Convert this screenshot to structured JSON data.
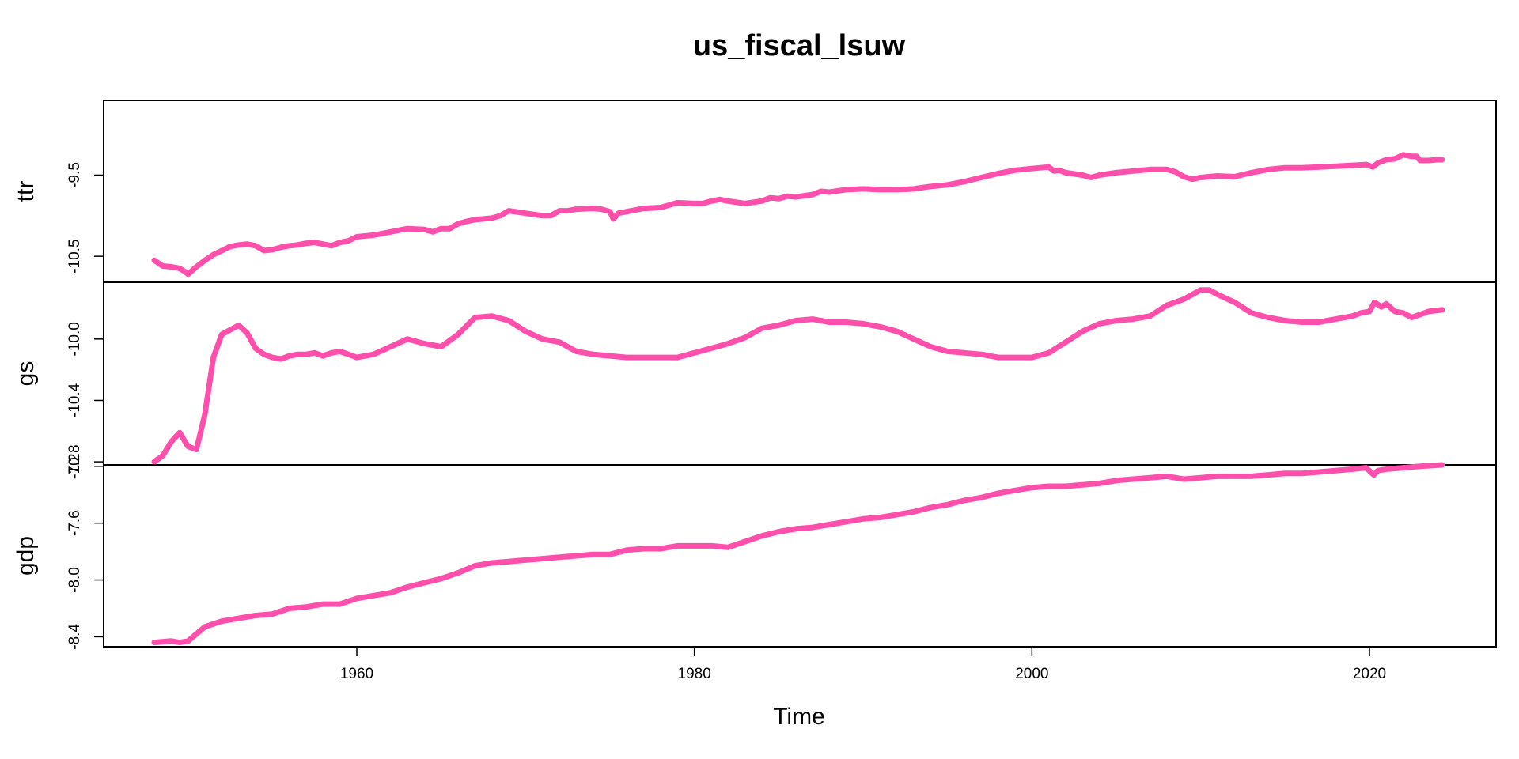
{
  "chart_data": {
    "type": "line",
    "title": "us_fiscal_lsuw",
    "xlabel": "Time",
    "xlim": [
      1945.0,
      2027.5
    ],
    "xticks": [
      1960,
      1980,
      2000,
      2020
    ],
    "color": "#ff4fac",
    "grid": false,
    "legend": "none",
    "panels": [
      {
        "name": "ttr",
        "ylim": [
          -10.82,
          -8.58
        ],
        "yticks": [
          -10.5,
          -9.5
        ],
        "x": [
          1948.0,
          1948.5,
          1949.0,
          1949.5,
          1949.75,
          1950.0,
          1950.5,
          1951.0,
          1951.5,
          1952.0,
          1952.5,
          1953.0,
          1953.5,
          1954.0,
          1954.5,
          1955.0,
          1955.5,
          1956.0,
          1956.5,
          1957.0,
          1957.5,
          1958.0,
          1958.5,
          1959.0,
          1959.5,
          1960.0,
          1961.0,
          1962.0,
          1963.0,
          1964.0,
          1964.5,
          1965.0,
          1965.5,
          1966.0,
          1966.5,
          1967.0,
          1968.0,
          1968.5,
          1969.0,
          1970.0,
          1971.0,
          1971.5,
          1972.0,
          1972.5,
          1973.0,
          1974.0,
          1974.5,
          1975.0,
          1975.2,
          1975.5,
          1976.0,
          1977.0,
          1978.0,
          1979.0,
          1980.0,
          1980.5,
          1981.0,
          1981.5,
          1982.0,
          1983.0,
          1984.0,
          1984.5,
          1985.0,
          1985.5,
          1986.0,
          1987.0,
          1987.5,
          1988.0,
          1989.0,
          1990.0,
          1991.0,
          1992.0,
          1993.0,
          1994.0,
          1995.0,
          1996.0,
          1997.0,
          1998.0,
          1999.0,
          2000.0,
          2000.5,
          2001.0,
          2001.3,
          2001.6,
          2002.0,
          2003.0,
          2003.5,
          2004.0,
          2005.0,
          2006.0,
          2007.0,
          2008.0,
          2008.5,
          2009.0,
          2009.5,
          2010.0,
          2011.0,
          2012.0,
          2013.0,
          2014.0,
          2015.0,
          2016.0,
          2017.0,
          2018.0,
          2019.0,
          2019.8,
          2020.2,
          2020.5,
          2021.0,
          2021.5,
          2022.0,
          2022.5,
          2022.8,
          2023.0,
          2023.5,
          2024.0,
          2024.3
        ],
        "y": [
          -10.55,
          -10.62,
          -10.63,
          -10.65,
          -10.68,
          -10.72,
          -10.63,
          -10.55,
          -10.48,
          -10.43,
          -10.38,
          -10.36,
          -10.35,
          -10.37,
          -10.43,
          -10.42,
          -10.39,
          -10.37,
          -10.36,
          -10.34,
          -10.33,
          -10.35,
          -10.37,
          -10.33,
          -10.31,
          -10.26,
          -10.24,
          -10.2,
          -10.16,
          -10.17,
          -10.2,
          -10.16,
          -10.16,
          -10.1,
          -10.07,
          -10.05,
          -10.03,
          -10.0,
          -9.94,
          -9.97,
          -10.0,
          -10.0,
          -9.94,
          -9.94,
          -9.92,
          -9.91,
          -9.92,
          -9.95,
          -10.04,
          -9.97,
          -9.95,
          -9.91,
          -9.9,
          -9.84,
          -9.85,
          -9.85,
          -9.82,
          -9.8,
          -9.82,
          -9.85,
          -9.82,
          -9.78,
          -9.79,
          -9.76,
          -9.77,
          -9.74,
          -9.7,
          -9.71,
          -9.68,
          -9.67,
          -9.68,
          -9.68,
          -9.67,
          -9.64,
          -9.62,
          -9.58,
          -9.53,
          -9.48,
          -9.44,
          -9.42,
          -9.41,
          -9.4,
          -9.45,
          -9.44,
          -9.47,
          -9.5,
          -9.53,
          -9.5,
          -9.47,
          -9.45,
          -9.43,
          -9.43,
          -9.46,
          -9.52,
          -9.55,
          -9.53,
          -9.51,
          -9.52,
          -9.47,
          -9.43,
          -9.41,
          -9.41,
          -9.4,
          -9.39,
          -9.38,
          -9.37,
          -9.4,
          -9.35,
          -9.31,
          -9.3,
          -9.25,
          -9.27,
          -9.27,
          -9.32,
          -9.32,
          -9.31,
          -9.31
        ]
      },
      {
        "name": "gs",
        "ylim": [
          -10.82,
          -9.63
        ],
        "yticks": [
          -10.8,
          -10.4,
          -10.0
        ],
        "x": [
          1948.0,
          1948.5,
          1949.0,
          1949.5,
          1950.0,
          1950.5,
          1951.0,
          1951.5,
          1952.0,
          1952.5,
          1953.0,
          1953.5,
          1954.0,
          1954.5,
          1955.0,
          1955.5,
          1956.0,
          1956.5,
          1957.0,
          1957.5,
          1958.0,
          1958.5,
          1959.0,
          1959.5,
          1960.0,
          1961.0,
          1962.0,
          1963.0,
          1964.0,
          1965.0,
          1966.0,
          1967.0,
          1968.0,
          1969.0,
          1970.0,
          1971.0,
          1972.0,
          1973.0,
          1974.0,
          1975.0,
          1976.0,
          1977.0,
          1978.0,
          1979.0,
          1980.0,
          1981.0,
          1982.0,
          1983.0,
          1984.0,
          1985.0,
          1986.0,
          1987.0,
          1988.0,
          1989.0,
          1990.0,
          1991.0,
          1992.0,
          1993.0,
          1994.0,
          1995.0,
          1996.0,
          1997.0,
          1998.0,
          1999.0,
          2000.0,
          2001.0,
          2002.0,
          2003.0,
          2004.0,
          2005.0,
          2006.0,
          2007.0,
          2008.0,
          2009.0,
          2010.0,
          2010.5,
          2011.0,
          2012.0,
          2013.0,
          2014.0,
          2015.0,
          2016.0,
          2017.0,
          2018.0,
          2019.0,
          2019.5,
          2020.0,
          2020.3,
          2020.7,
          2021.0,
          2021.5,
          2022.0,
          2022.5,
          2023.0,
          2023.5,
          2024.3
        ],
        "y": [
          -10.8,
          -10.76,
          -10.67,
          -10.61,
          -10.7,
          -10.72,
          -10.49,
          -10.12,
          -9.97,
          -9.94,
          -9.91,
          -9.96,
          -10.06,
          -10.1,
          -10.12,
          -10.13,
          -10.11,
          -10.1,
          -10.1,
          -10.09,
          -10.11,
          -10.09,
          -10.08,
          -10.1,
          -10.12,
          -10.1,
          -10.05,
          -10.0,
          -10.03,
          -10.05,
          -9.97,
          -9.86,
          -9.85,
          -9.88,
          -9.95,
          -10.0,
          -10.02,
          -10.08,
          -10.1,
          -10.11,
          -10.12,
          -10.12,
          -10.12,
          -10.12,
          -10.09,
          -10.06,
          -10.03,
          -9.99,
          -9.93,
          -9.91,
          -9.88,
          -9.87,
          -9.89,
          -9.89,
          -9.9,
          -9.92,
          -9.95,
          -10.0,
          -10.05,
          -10.08,
          -10.09,
          -10.1,
          -10.12,
          -10.12,
          -10.12,
          -10.09,
          -10.02,
          -9.95,
          -9.9,
          -9.88,
          -9.87,
          -9.85,
          -9.78,
          -9.74,
          -9.68,
          -9.68,
          -9.71,
          -9.76,
          -9.83,
          -9.86,
          -9.88,
          -9.89,
          -9.89,
          -9.87,
          -9.85,
          -9.83,
          -9.82,
          -9.76,
          -9.79,
          -9.77,
          -9.82,
          -9.83,
          -9.86,
          -9.84,
          -9.82,
          -9.81
        ]
      },
      {
        "name": "gdp",
        "ylim": [
          -8.47,
          -7.19
        ],
        "yticks": [
          -8.4,
          -8.0,
          -7.6,
          -7.2
        ],
        "x": [
          1948.0,
          1949.0,
          1949.5,
          1950.0,
          1950.5,
          1951.0,
          1952.0,
          1953.0,
          1954.0,
          1955.0,
          1956.0,
          1957.0,
          1958.0,
          1959.0,
          1960.0,
          1961.0,
          1962.0,
          1963.0,
          1964.0,
          1965.0,
          1966.0,
          1967.0,
          1968.0,
          1969.0,
          1970.0,
          1971.0,
          1972.0,
          1973.0,
          1974.0,
          1975.0,
          1976.0,
          1977.0,
          1978.0,
          1979.0,
          1980.0,
          1981.0,
          1982.0,
          1983.0,
          1984.0,
          1985.0,
          1986.0,
          1987.0,
          1988.0,
          1989.0,
          1990.0,
          1991.0,
          1992.0,
          1993.0,
          1994.0,
          1995.0,
          1996.0,
          1997.0,
          1998.0,
          1999.0,
          2000.0,
          2001.0,
          2002.0,
          2003.0,
          2004.0,
          2005.0,
          2006.0,
          2007.0,
          2008.0,
          2009.0,
          2010.0,
          2011.0,
          2012.0,
          2013.0,
          2014.0,
          2015.0,
          2016.0,
          2017.0,
          2018.0,
          2019.0,
          2019.8,
          2020.25,
          2020.5,
          2021.0,
          2022.0,
          2023.0,
          2024.3
        ],
        "y": [
          -8.44,
          -8.43,
          -8.44,
          -8.43,
          -8.38,
          -8.33,
          -8.29,
          -8.27,
          -8.25,
          -8.24,
          -8.2,
          -8.19,
          -8.17,
          -8.17,
          -8.13,
          -8.11,
          -8.09,
          -8.05,
          -8.02,
          -7.99,
          -7.95,
          -7.9,
          -7.88,
          -7.87,
          -7.86,
          -7.85,
          -7.84,
          -7.83,
          -7.82,
          -7.82,
          -7.79,
          -7.78,
          -7.78,
          -7.76,
          -7.76,
          -7.76,
          -7.77,
          -7.73,
          -7.69,
          -7.66,
          -7.64,
          -7.63,
          -7.61,
          -7.59,
          -7.57,
          -7.56,
          -7.54,
          -7.52,
          -7.49,
          -7.47,
          -7.44,
          -7.42,
          -7.39,
          -7.37,
          -7.35,
          -7.34,
          -7.34,
          -7.33,
          -7.32,
          -7.3,
          -7.29,
          -7.28,
          -7.27,
          -7.29,
          -7.28,
          -7.27,
          -7.27,
          -7.27,
          -7.26,
          -7.25,
          -7.25,
          -7.24,
          -7.23,
          -7.22,
          -7.21,
          -7.26,
          -7.23,
          -7.22,
          -7.21,
          -7.2,
          -7.19
        ]
      }
    ]
  }
}
